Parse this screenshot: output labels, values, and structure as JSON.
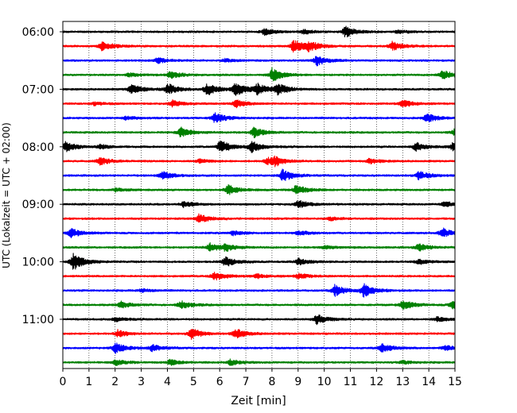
{
  "chart_data": {
    "type": "line",
    "title": "",
    "xlabel": "Zeit  [min]",
    "ylabel": "UTC (Lokalzeit = UTC + 02:00)",
    "xlim": [
      0,
      15
    ],
    "x_ticks": [
      "0",
      "1",
      "2",
      "3",
      "4",
      "5",
      "6",
      "7",
      "8",
      "9",
      "10",
      "11",
      "12",
      "13",
      "14",
      "15"
    ],
    "y_ticks": [
      "06:00",
      "07:00",
      "08:00",
      "09:00",
      "10:00",
      "11:00"
    ],
    "grid": "vertical-dotted",
    "trace_colors": [
      "#000000",
      "#ff0000",
      "#0000ff",
      "#008000"
    ],
    "row_interval_min": 15,
    "rows": [
      {
        "start": "06:00",
        "color": "#000000",
        "events": [
          [
            7.7,
            0.6
          ],
          [
            10.8,
            1.0
          ],
          [
            9.2,
            0.4
          ],
          [
            12.8,
            0.3
          ]
        ]
      },
      {
        "start": "06:15",
        "color": "#ff0000",
        "events": [
          [
            1.5,
            0.9
          ],
          [
            8.8,
            1.2
          ],
          [
            9.4,
            0.9
          ],
          [
            12.6,
            0.8
          ]
        ]
      },
      {
        "start": "06:30",
        "color": "#0000ff",
        "events": [
          [
            3.6,
            0.5
          ],
          [
            9.7,
            0.9
          ],
          [
            6.2,
            0.3
          ]
        ]
      },
      {
        "start": "06:45",
        "color": "#008000",
        "events": [
          [
            4.1,
            0.7
          ],
          [
            8.0,
            1.2
          ],
          [
            14.5,
            0.9
          ],
          [
            2.5,
            0.3
          ]
        ]
      },
      {
        "start": "07:00",
        "color": "#000000",
        "events": [
          [
            2.6,
            0.9
          ],
          [
            4.0,
            1.0
          ],
          [
            5.5,
            1.1
          ],
          [
            6.6,
            1.2
          ],
          [
            7.4,
            1.0
          ],
          [
            8.2,
            1.0
          ]
        ]
      },
      {
        "start": "07:15",
        "color": "#ff0000",
        "events": [
          [
            4.2,
            0.6
          ],
          [
            6.6,
            0.7
          ],
          [
            13.0,
            0.7
          ],
          [
            1.2,
            0.3
          ]
        ]
      },
      {
        "start": "07:30",
        "color": "#0000ff",
        "events": [
          [
            5.8,
            1.0
          ],
          [
            13.9,
            0.8
          ],
          [
            2.4,
            0.3
          ]
        ]
      },
      {
        "start": "07:45",
        "color": "#008000",
        "events": [
          [
            4.5,
            1.0
          ],
          [
            7.3,
            0.9
          ],
          [
            15.0,
            0.8
          ]
        ]
      },
      {
        "start": "08:00",
        "color": "#000000",
        "events": [
          [
            0.1,
            0.9
          ],
          [
            6.0,
            1.2
          ],
          [
            7.2,
            1.0
          ],
          [
            13.5,
            0.8
          ],
          [
            14.9,
            0.7
          ],
          [
            1.4,
            0.4
          ]
        ]
      },
      {
        "start": "08:15",
        "color": "#ff0000",
        "events": [
          [
            1.4,
            0.7
          ],
          [
            7.8,
            0.6
          ],
          [
            8.1,
            0.7
          ],
          [
            11.7,
            0.5
          ],
          [
            5.2,
            0.3
          ]
        ]
      },
      {
        "start": "08:30",
        "color": "#0000ff",
        "events": [
          [
            3.8,
            0.7
          ],
          [
            8.4,
            1.1
          ],
          [
            13.6,
            0.8
          ]
        ]
      },
      {
        "start": "08:45",
        "color": "#008000",
        "events": [
          [
            6.3,
            0.9
          ],
          [
            8.9,
            0.9
          ],
          [
            2.0,
            0.3
          ]
        ]
      },
      {
        "start": "09:00",
        "color": "#000000",
        "events": [
          [
            4.6,
            0.5
          ],
          [
            9.0,
            0.7
          ],
          [
            14.6,
            0.5
          ]
        ]
      },
      {
        "start": "09:15",
        "color": "#ff0000",
        "events": [
          [
            5.2,
            0.8
          ],
          [
            10.2,
            0.3
          ]
        ]
      },
      {
        "start": "09:30",
        "color": "#0000ff",
        "events": [
          [
            0.3,
            0.8
          ],
          [
            14.5,
            0.9
          ],
          [
            6.5,
            0.4
          ],
          [
            9.0,
            0.4
          ]
        ]
      },
      {
        "start": "09:45",
        "color": "#008000",
        "events": [
          [
            5.6,
            0.8
          ],
          [
            13.6,
            0.7
          ],
          [
            6.2,
            0.6
          ],
          [
            10.0,
            0.3
          ]
        ]
      },
      {
        "start": "10:00",
        "color": "#000000",
        "events": [
          [
            0.4,
            1.5
          ],
          [
            6.2,
            0.9
          ],
          [
            9.0,
            0.6
          ],
          [
            13.6,
            0.5
          ]
        ]
      },
      {
        "start": "10:15",
        "color": "#ff0000",
        "events": [
          [
            5.8,
            0.8
          ],
          [
            7.4,
            0.4
          ],
          [
            9.0,
            0.5
          ]
        ]
      },
      {
        "start": "10:30",
        "color": "#0000ff",
        "events": [
          [
            10.4,
            1.0
          ],
          [
            11.5,
            1.2
          ],
          [
            3.0,
            0.3
          ]
        ]
      },
      {
        "start": "10:45",
        "color": "#008000",
        "events": [
          [
            2.2,
            0.6
          ],
          [
            4.5,
            0.7
          ],
          [
            13.0,
            0.9
          ],
          [
            14.9,
            0.8
          ]
        ]
      },
      {
        "start": "11:00",
        "color": "#000000",
        "events": [
          [
            9.7,
            0.9
          ],
          [
            2.0,
            0.4
          ],
          [
            14.3,
            0.4
          ]
        ]
      },
      {
        "start": "11:15",
        "color": "#ff0000",
        "events": [
          [
            4.9,
            1.0
          ],
          [
            6.6,
            0.9
          ],
          [
            2.1,
            0.6
          ]
        ]
      },
      {
        "start": "11:30",
        "color": "#0000ff",
        "events": [
          [
            2.0,
            1.0
          ],
          [
            3.4,
            0.6
          ],
          [
            12.2,
            0.8
          ],
          [
            14.6,
            0.5
          ]
        ]
      },
      {
        "start": "11:45",
        "color": "#008000",
        "events": [
          [
            2.0,
            0.5
          ],
          [
            4.1,
            0.5
          ],
          [
            6.4,
            0.5
          ],
          [
            13.0,
            0.3
          ]
        ]
      }
    ]
  }
}
